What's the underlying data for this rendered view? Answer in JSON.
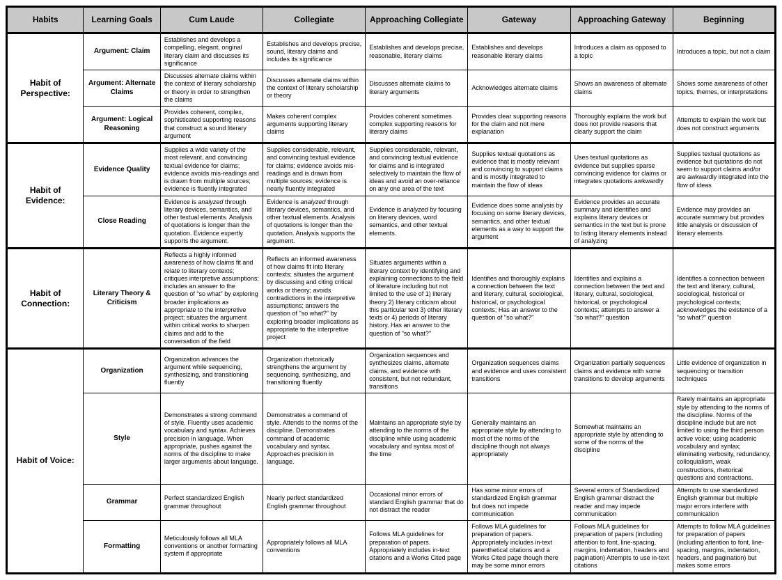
{
  "headers": {
    "habits": "Habits",
    "goals": "Learning Goals",
    "levels": [
      "Cum Laude",
      "Collegiate",
      "Approaching Collegiate",
      "Gateway",
      "Approaching Gateway",
      "Beginning"
    ]
  },
  "groups": [
    {
      "habit": "Habit of Perspective:",
      "rows": [
        {
          "goal": "Argument: Claim",
          "cells": [
            "Establishes and develops a compelling, elegant, original literary claim and discusses its significance",
            "Establishes and develops precise, sound, literary claims and includes its significance",
            "Establishes and develops precise, reasonable, literary claims",
            "Establishes and develops reasonable literary claims",
            "Introduces a claim as opposed to a topic",
            "Introduces a topic, but not a claim"
          ]
        },
        {
          "goal": "Argument: Alternate Claims",
          "cells": [
            "Discusses alternate claims within the context of literary scholarship or theory in order to strengthen the claims",
            "Discusses alternate claims within the context of literary scholarship or theory",
            "Discusses alternate claims to literary arguments",
            "Acknowledges alternate claims",
            "Shows an awareness of alternate claims",
            "Shows some awareness of other topics, themes, or interpretations"
          ]
        },
        {
          "goal": "Argument: Logical Reasoning",
          "cells": [
            "Provides coherent, complex, sophisticated supporting reasons that construct a sound literary argument",
            "Makes coherent complex arguments supporting literary claims",
            "Provides coherent sometimes complex supporting reasons for literary claims",
            "Provides clear supporting reasons for the claim and not mere explanation",
            "Thoroughly explains the work but does not provide reasons that clearly support the claim",
            "Attempts to explain the work but does not construct arguments"
          ]
        }
      ]
    },
    {
      "habit": "Habit of Evidence:",
      "rows": [
        {
          "goal": "Evidence Quality",
          "cells": [
            "Supplies a wide variety of the most relevant, and convincing textual evidence for claims; evidence avoids mis-readings and is drawn from multiple sources; evidence is fluently integrated",
            "Supplies considerable, relevant, and convincing textual evidence for claims; evidence avoids mis-readings and is drawn from multiple sources; evidence is nearly fluently integrated",
            "Supplies considerable, relevant, and convincing textual evidence for claims and is integrated selectively to maintain the flow of ideas and avoid an over-reliance on any one area of the text",
            "Supplies textual quotations as evidence that is mostly relevant and convincing to support claims and is mostly integrated to maintain the flow of ideas",
            "Uses textual quotations as evidence but supplies sparse convincing evidence for claims or integrates quotations awkwardly",
            "Supplies textual quotations as evidence but quotations do not seem to support claims and/or are awkwardly integrated into the flow of ideas"
          ]
        },
        {
          "goal": "Close Reading",
          "cells": [
            "Evidence is analyzed through literary devices, semantics, and other textual elements.  Analysis of quotations is longer than the quotation.  Evidence expertly supports the argument.",
            "Evidence is analyzed through literary devices, semantics, and other textual elements.  Analysis of quotations is longer than the quotation.  Analysis supports the argument.",
            "Evidence is analyzed by focusing on literary devices, word semantics, and other textual elements.",
            "Evidence does some analysis by focusing on some literary devices, semantics, and other textual elements as a way to support the argument",
            "Evidence provides an accurate summary and identifies and explains literary devices or semantics in the text but is prone to listing literary elements instead of analyzing",
            "Evidence may provides an accurate summary but provides little analysis or discussion of literary elements"
          ]
        }
      ]
    },
    {
      "habit": "Habit of Connection:",
      "rows": [
        {
          "goal": "Literary Theory & Criticism",
          "cells": [
            "Reflects a highly informed awareness of how claims fit and relate to literary contexts; critiques interpretive assumptions; includes an answer to the question of \"so what\" by exploring broader implications as appropriate to the interpretive project; situates the argument within critical works to sharpen claims and add to the conversation of the field",
            "Reflects an informed awareness of how claims fit into literary contexts; situates the argument by discussing and citing critical works or theory; avoids contradictions in the interpretive assumptions; answers the question of \"so what?\" by exploring broader implications as appropriate to the interpretive project",
            "Situates arguments within a literary context by identifying and explaining connections to the field of literature including but not limited to the use of 1) literary theory 2) literary criticism about this particular text 3) other literary texts or 4) periods of literary history. Has an answer to the question of \"so what?\"",
            "Identifies and thoroughly explains a connection between the text and literary, cultural, sociological, historical, or psychological contexts; Has an answer to the question of \"so what?\"",
            "Identifies and explains a connection between the text and literary, cultural, sociological, historical, or psychological contexts; attempts to answer a \"so what?\" question",
            "Identifies a connection between the text and literary, cultural, sociological, historical or psychological contexts; acknowledges the existence of a \"so what?\" question"
          ]
        }
      ]
    },
    {
      "habit": "Habit of Voice:",
      "rows": [
        {
          "goal": "Organization",
          "cells": [
            "Organization advances the argument while sequencing, synthesizing, and transitioning fluently",
            "Organization rhetorically strengthens the argument by sequencing, synthesizing, and transitioning fluently",
            "Organization sequences and synthesizes claims, alternate claims, and evidence with consistent, but not redundant, transitions",
            "Organization sequences claims and evidence and uses consistent transitions",
            "Organization partially sequences claims and evidence with some transitions to develop arguments",
            "Little evidence of organization in sequencing or transition techniques"
          ]
        },
        {
          "goal": "Style",
          "cells": [
            "Demonstrates a strong command of style.  Fluently uses academic vocabulary and syntax. Achieves precision in language.  When appropriate, pushes against the norms of the discipline to make larger arguments about language.",
            "Demonstrates a command of style. Attends to the norms of the discipline.  Demonstrates command of academic vocabulary and syntax.  Approaches precision in language.",
            "Maintains an appropriate style by attending to the norms of the discipline while using academic vocabulary and syntax most of the time",
            "Generally maintains an appropriate style by attending to most of the norms of the discipline though not always appropriately",
            "Somewhat maintains an appropriate style by attending to some of the norms of the discipline",
            "Rarely maintains an appropriate style by attending to the norms of the discipline.  Norms of the discipline include but are not limited to using the third person active voice; using academic vocabulary and syntax; eliminating verbosity, redundancy, colloquialism, weak constructions, rhetorical questions and contractions."
          ]
        },
        {
          "goal": "Grammar",
          "cells": [
            "Perfect standardized English grammar throughout",
            "Nearly perfect standardized English grammar throughout",
            "Occasional minor errors of standard English grammar that do not distract the reader",
            "Has some minor errors of standardized English grammar but does not impede communication",
            "Several errors of Standardized English grammar distract the reader and may impede communication",
            "Attempts to use standardized English grammar but multiple major errors interfere with communication"
          ]
        },
        {
          "goal": "Formatting",
          "cells": [
            "Meticulously follows all MLA conventions or another formatting system if appropriate",
            "Appropriately follows all MLA conventions",
            "Follows MLA guidelines for preparation of papers. Appropriately includes in-text citations and a Works Cited page",
            "Follows MLA guidelines for preparation of papers. Appropriately includes in-text parenthetical citations and a Works Cited page though there may be some minor errors",
            "Follows MLA guidelines for preparation of papers (including attention to font, line-spacing, margins, indentation, headers and pagination) Attempts to use in-text citations",
            "Attempts to follow MLA guidelines for preparation of papers (including attention to font, line-spacing, margins, indentation, headers, and pagination) but makes some errors"
          ]
        }
      ]
    }
  ]
}
